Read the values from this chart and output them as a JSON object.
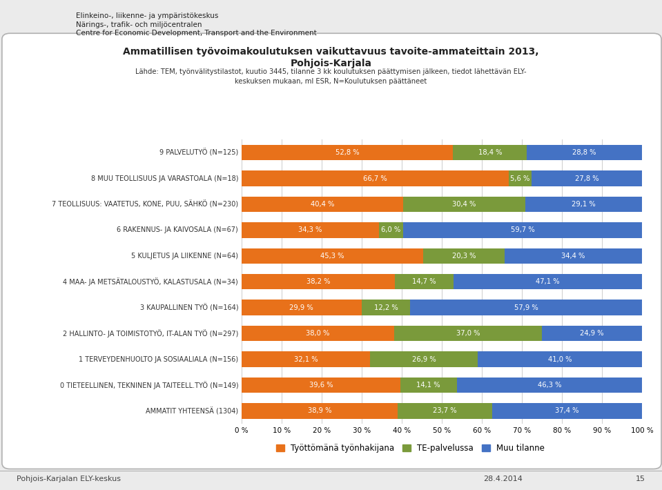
{
  "title_line1": "Ammatillisen työvoimakoulutuksen vaikuttavuus tavoite-ammateittain 2013,",
  "title_line2": "Pohjois-Karjala",
  "subtitle": "Lähde: TEM, työnvälitystilastot, kuutio 3445, tilanne 3 kk koulutuksen päättymisen jälkeen, tiedot lähettävän ELY-\nkeskuksen mukaan, ml ESR, N=Koulutuksen päättäneet",
  "categories": [
    "AMMATIT YHTEENSÄ (1304)",
    "0 TIETEELLINEN, TEKNINEN JA TAITEELL.TYÖ (N=149)",
    "1 TERVEYDENHUOLTO JA SOSIAALIALA (N=156)",
    "2 HALLINTO- JA TOIMISTOTYÖ, IT-ALAN TYÖ (N=297)",
    "3 KAUPALLINEN TYÖ (N=164)",
    "4 MAA- JA METSÄTALOUSTYÖ, KALASTUSALA (N=34)",
    "5 KULJETUS JA LIIKENNE (N=64)",
    "6 RAKENNUS- JA KAIVOSALA (N=67)",
    "7 TEOLLISUUS: VAATETUS, KONE, PUU, SÄHKÖ (N=230)",
    "8 MUU TEOLLISUUS JA VARASTOALA (N=18)",
    "9 PALVELUTYÖ (N=125)"
  ],
  "tyoton": [
    38.9,
    39.6,
    32.1,
    38.0,
    29.9,
    38.2,
    45.3,
    34.3,
    40.4,
    66.7,
    52.8
  ],
  "te_palvelu": [
    23.7,
    14.1,
    26.9,
    37.0,
    12.2,
    14.7,
    20.3,
    6.0,
    30.4,
    5.6,
    18.4
  ],
  "muu_tilanne": [
    37.4,
    46.3,
    41.0,
    24.9,
    57.9,
    47.1,
    34.4,
    59.7,
    29.1,
    27.8,
    28.8
  ],
  "color_tyoton": "#E8711A",
  "color_te": "#7A9A3B",
  "color_muu": "#4472C4",
  "legend_labels": [
    "Työttömänä työnhakijana",
    "TE-palvelussa",
    "Muu tilanne"
  ],
  "header_line1": "Elinkeino-, liikenne- ja ympäristökeskus",
  "header_line2": "Närings-, trafik- och miljöcentralen",
  "header_line3": "Centre for Economic Development, Transport and the Environment",
  "footer_left": "Pohjois-Karjalan ELY-keskus",
  "footer_right": "28.4.2014",
  "footer_page": "15",
  "background_color": "#ebebeb",
  "bar_height": 0.6,
  "xticks": [
    0,
    10,
    20,
    30,
    40,
    50,
    60,
    70,
    80,
    90,
    100
  ],
  "xticklabels": [
    "0 %",
    "10 %",
    "20 %",
    "30 %",
    "40 %",
    "50 %",
    "60 %",
    "70 %",
    "80 %",
    "90 %",
    "100 %"
  ]
}
